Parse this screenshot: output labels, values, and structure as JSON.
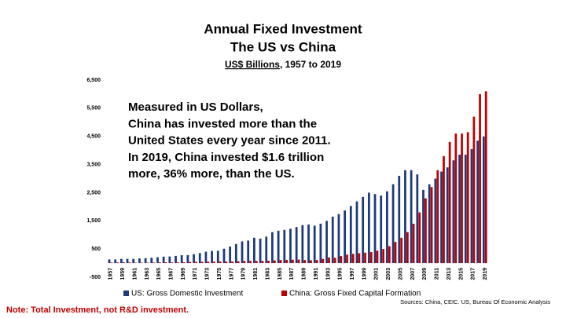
{
  "chart_data": {
    "type": "bar",
    "title": [
      "Annual Fixed Investment",
      "The US vs China"
    ],
    "subtitle": [
      "US$ Billions",
      ", 1957 to 2019"
    ],
    "annotation": [
      "Measured in US Dollars,",
      "China has invested more than the",
      "United States every year since 2011.",
      "In 2019, China invested $1.6 trillion",
      "more, 36% more, than the US."
    ],
    "note": "Note: Total Investment, not R&D investment.",
    "source": "Sources: China, CEIC. US, Bureau Of Economic Analysis",
    "categories": [
      "1957",
      null,
      "1959",
      null,
      "1961",
      null,
      "1963",
      null,
      "1965",
      null,
      "1967",
      null,
      "1969",
      null,
      "1971",
      null,
      "1973",
      null,
      "1975",
      null,
      "1977",
      null,
      "1979",
      null,
      "1981",
      null,
      "1983",
      null,
      "1985",
      null,
      "1987",
      null,
      "1989",
      null,
      "1991",
      null,
      "1993",
      null,
      "1995",
      null,
      "1997",
      null,
      "1999",
      null,
      "2001",
      null,
      "2003",
      null,
      "2005",
      null,
      "2007",
      null,
      "2009",
      null,
      "2011",
      null,
      "2013",
      null,
      "2015",
      null,
      "2017",
      null,
      "2019"
    ],
    "series": [
      {
        "name": "US: Gross Domestic Investment",
        "color": "#1f3a7a",
        "values": [
          130,
          130,
          150,
          150,
          150,
          165,
          175,
          190,
          210,
          230,
          235,
          255,
          280,
          285,
          315,
          355,
          405,
          430,
          440,
          510,
          590,
          680,
          770,
          800,
          900,
          870,
          940,
          1100,
          1150,
          1180,
          1220,
          1280,
          1350,
          1370,
          1330,
          1400,
          1500,
          1650,
          1740,
          1870,
          2030,
          2190,
          2350,
          2500,
          2450,
          2400,
          2550,
          2800,
          3100,
          3300,
          3300,
          3150,
          2600,
          2800,
          3000,
          3250,
          3400,
          3650,
          3850,
          3850,
          4050,
          4350,
          4500
        ]
      },
      {
        "name": "China: Gross Fixed Capital Formation",
        "color": "#c00000",
        "values": [
          20,
          25,
          30,
          25,
          15,
          15,
          15,
          20,
          25,
          30,
          25,
          25,
          30,
          40,
          45,
          45,
          50,
          50,
          55,
          55,
          60,
          65,
          75,
          80,
          75,
          75,
          85,
          95,
          110,
          115,
          120,
          125,
          110,
          100,
          110,
          150,
          200,
          190,
          250,
          300,
          330,
          350,
          370,
          390,
          440,
          500,
          600,
          750,
          900,
          1100,
          1400,
          1800,
          2300,
          2700,
          3300,
          3800,
          4300,
          4600,
          4600,
          4650,
          5200,
          6000,
          6100
        ]
      }
    ],
    "ylim": [
      -500,
      6500
    ],
    "yticks": [
      -500,
      500,
      {
        "value": 1500,
        "label": "1,500"
      },
      {
        "value": 2500,
        "label": "2,500"
      },
      {
        "value": 3500,
        "label": "3,500"
      },
      {
        "value": 4500,
        "label": "4,500"
      },
      {
        "value": 5500,
        "label": "5,500"
      },
      {
        "value": 6500,
        "label": "6,500"
      }
    ]
  }
}
